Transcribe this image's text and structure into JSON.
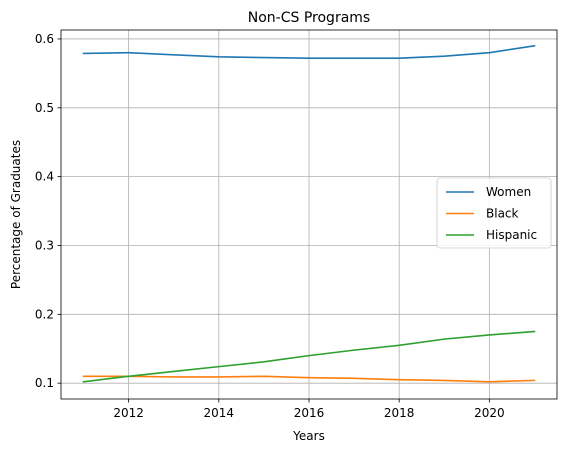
{
  "chart_data": {
    "type": "line",
    "title": "Non-CS Programs",
    "xlabel": "Years",
    "ylabel": "Percentage of Graduates",
    "xlim": [
      2010.5,
      2021.5
    ],
    "ylim": [
      0.077,
      0.613
    ],
    "xticks": [
      2012,
      2014,
      2016,
      2018,
      2020
    ],
    "yticks": [
      0.1,
      0.2,
      0.3,
      0.4,
      0.5,
      0.6
    ],
    "grid": true,
    "legend_position": "center-right",
    "x": [
      2011,
      2012,
      2013,
      2014,
      2015,
      2016,
      2017,
      2018,
      2019,
      2020,
      2021
    ],
    "series": [
      {
        "name": "Women",
        "color": "#1f77b4",
        "values": [
          0.579,
          0.58,
          0.577,
          0.574,
          0.573,
          0.572,
          0.572,
          0.572,
          0.575,
          0.58,
          0.59
        ]
      },
      {
        "name": "Black",
        "color": "#ff7f0e",
        "values": [
          0.11,
          0.11,
          0.109,
          0.109,
          0.11,
          0.108,
          0.107,
          0.105,
          0.104,
          0.102,
          0.104
        ]
      },
      {
        "name": "Hispanic",
        "color": "#2ca02c",
        "values": [
          0.102,
          0.11,
          0.117,
          0.124,
          0.131,
          0.14,
          0.148,
          0.155,
          0.164,
          0.17,
          0.175
        ]
      }
    ]
  }
}
